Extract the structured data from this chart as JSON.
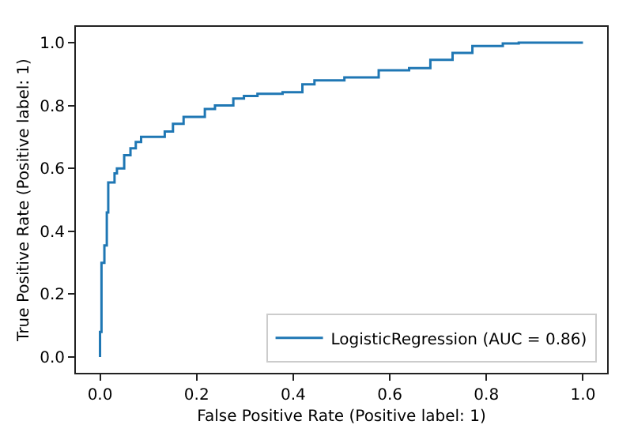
{
  "chart_data": {
    "type": "step",
    "xlabel": "False Positive Rate (Positive label: 1)",
    "ylabel": "True Positive Rate (Positive label: 1)",
    "xlim": [
      -0.05,
      1.05
    ],
    "ylim": [
      -0.05,
      1.05
    ],
    "xticks": [
      {
        "value": 0,
        "label": "0.0"
      },
      {
        "value": 0.2,
        "label": "0.2"
      },
      {
        "value": 0.4,
        "label": "0.4"
      },
      {
        "value": 0.6,
        "label": "0.6"
      },
      {
        "value": 0.8,
        "label": "0.8"
      },
      {
        "value": 1,
        "label": "1.0"
      }
    ],
    "yticks": [
      {
        "value": 0,
        "label": "0.0"
      },
      {
        "value": 0.2,
        "label": "0.2"
      },
      {
        "value": 0.4,
        "label": "0.4"
      },
      {
        "value": 0.6,
        "label": "0.6"
      },
      {
        "value": 0.8,
        "label": "0.8"
      },
      {
        "value": 1,
        "label": "1.0"
      }
    ],
    "grid": false,
    "legend": "bottom right",
    "marker": "none",
    "line_style": "solid",
    "series": [
      {
        "name": "LogisticRegression (AUC = 0.86)",
        "color": "#1f77b4",
        "x": [
          0,
          0,
          0.003,
          0.009,
          0.014,
          0.017,
          0.03,
          0.035,
          0.05,
          0.063,
          0.074,
          0.085,
          0.124,
          0.134,
          0.151,
          0.173,
          0.217,
          0.238,
          0.276,
          0.298,
          0.326,
          0.378,
          0.419,
          0.444,
          0.506,
          0.577,
          0.64,
          0.684,
          0.73,
          0.771,
          0.834,
          0.867,
          1.0
        ],
        "values": [
          0,
          0.08,
          0.3,
          0.355,
          0.46,
          0.555,
          0.584,
          0.6,
          0.642,
          0.664,
          0.684,
          0.7,
          0.7,
          0.717,
          0.742,
          0.764,
          0.789,
          0.8,
          0.822,
          0.83,
          0.837,
          0.842,
          0.867,
          0.88,
          0.889,
          0.912,
          0.919,
          0.945,
          0.967,
          0.989,
          0.997,
          1.0,
          1.0
        ]
      }
    ]
  }
}
